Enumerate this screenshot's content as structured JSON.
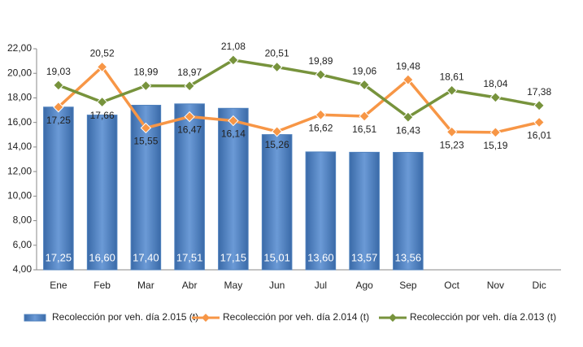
{
  "chart_data": {
    "type": "bar_line",
    "categories": [
      "Ene",
      "Feb",
      "Mar",
      "Abr",
      "May",
      "Jun",
      "Jul",
      "Ago",
      "Sep",
      "Oct",
      "Nov",
      "Dic"
    ],
    "ylim": [
      4,
      22
    ],
    "yticks": [
      {
        "value": 4,
        "label": "4,00"
      },
      {
        "value": 6,
        "label": "6,00"
      },
      {
        "value": 8,
        "label": "8,00"
      },
      {
        "value": 10,
        "label": "10,00"
      },
      {
        "value": 12,
        "label": "12,00"
      },
      {
        "value": 14,
        "label": "14,00"
      },
      {
        "value": 16,
        "label": "16,00"
      },
      {
        "value": 18,
        "label": "18,00"
      },
      {
        "value": 20,
        "label": "20,00"
      },
      {
        "value": 22,
        "label": "22,00"
      }
    ],
    "grid": false,
    "series": [
      {
        "name": "Recolección por veh. día 2.015 (t)",
        "kind": "bar",
        "color": "#4f81bd",
        "values": [
          17.25,
          16.6,
          17.4,
          17.51,
          17.15,
          15.01,
          13.6,
          13.57,
          13.56,
          null,
          null,
          null
        ],
        "value_labels": [
          "17,25",
          "16,60",
          "17,40",
          "17,51",
          "17,15",
          "15,01",
          "13,60",
          "13,57",
          "13,56",
          null,
          null,
          null
        ]
      },
      {
        "name": "Recolección por veh. día 2.014 (t)",
        "kind": "line",
        "color": "#f79646",
        "values": [
          17.25,
          20.52,
          15.55,
          16.47,
          16.14,
          15.26,
          16.62,
          16.51,
          19.48,
          15.23,
          15.19,
          16.01
        ],
        "value_labels": [
          "17,25",
          "20,52",
          "15,55",
          "16,47",
          "16,14",
          "15,26",
          "16,62",
          "16,51",
          "19,48",
          "15,23",
          "15,19",
          "16,01"
        ]
      },
      {
        "name": "Recolección por veh. día 2.013 (t)",
        "kind": "line",
        "color": "#77933c",
        "values": [
          19.03,
          17.66,
          18.99,
          18.97,
          21.08,
          20.51,
          19.89,
          19.06,
          16.43,
          18.61,
          18.04,
          17.38
        ],
        "value_labels": [
          "19,03",
          "17,66",
          "18,99",
          "18,97",
          "21,08",
          "20,51",
          "19,89",
          "19,06",
          "16,43",
          "18,61",
          "18,04",
          "17,38"
        ]
      }
    ]
  }
}
